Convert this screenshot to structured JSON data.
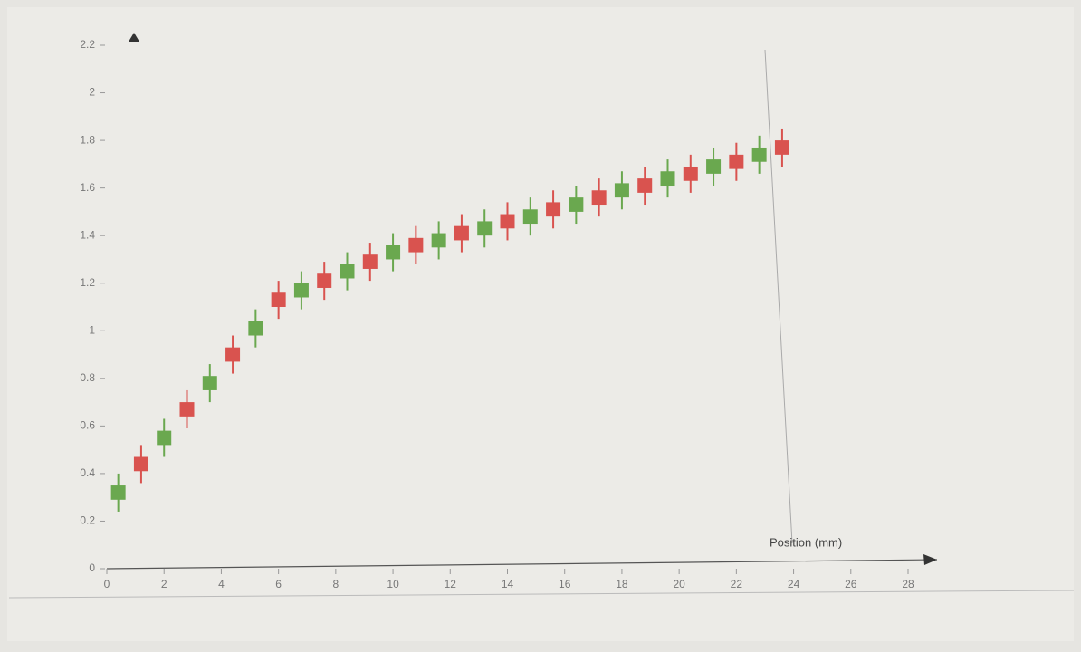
{
  "chart_data": {
    "type": "candlestick",
    "x_label": "Position (mm)",
    "x": [
      0.4,
      1.2,
      2.0,
      2.8,
      3.6,
      4.4,
      5.2,
      6.0,
      6.8,
      7.6,
      8.4,
      9.2,
      10.0,
      10.8,
      11.6,
      12.4,
      13.2,
      14.0,
      14.8,
      15.6,
      16.4,
      17.2,
      18.0,
      18.8,
      19.6,
      20.4,
      21.2,
      22.0,
      22.8,
      23.6
    ],
    "open": [
      0.29,
      0.47,
      0.52,
      0.7,
      0.75,
      0.93,
      0.98,
      1.16,
      1.14,
      1.24,
      1.22,
      1.32,
      1.3,
      1.39,
      1.35,
      1.44,
      1.4,
      1.49,
      1.45,
      1.54,
      1.5,
      1.59,
      1.56,
      1.64,
      1.61,
      1.69,
      1.66,
      1.74,
      1.71,
      1.8
    ],
    "close": [
      0.35,
      0.41,
      0.58,
      0.64,
      0.81,
      0.87,
      1.04,
      1.1,
      1.2,
      1.18,
      1.28,
      1.26,
      1.36,
      1.33,
      1.41,
      1.38,
      1.46,
      1.43,
      1.51,
      1.48,
      1.56,
      1.53,
      1.62,
      1.58,
      1.67,
      1.63,
      1.72,
      1.68,
      1.77,
      1.74
    ],
    "high": [
      0.4,
      0.52,
      0.63,
      0.75,
      0.86,
      0.98,
      1.09,
      1.21,
      1.25,
      1.29,
      1.33,
      1.37,
      1.41,
      1.44,
      1.46,
      1.49,
      1.51,
      1.54,
      1.56,
      1.59,
      1.61,
      1.64,
      1.67,
      1.69,
      1.72,
      1.74,
      1.77,
      1.79,
      1.82,
      1.85
    ],
    "low": [
      0.24,
      0.36,
      0.47,
      0.59,
      0.7,
      0.82,
      0.93,
      1.05,
      1.09,
      1.13,
      1.17,
      1.21,
      1.25,
      1.28,
      1.3,
      1.33,
      1.35,
      1.38,
      1.4,
      1.43,
      1.45,
      1.48,
      1.51,
      1.53,
      1.56,
      1.58,
      1.61,
      1.63,
      1.66,
      1.69
    ],
    "up_color": "#6aa84f",
    "down_color": "#d9534f",
    "xlim": [
      0,
      28
    ],
    "xticks": [
      0,
      2,
      4,
      6,
      8,
      10,
      12,
      14,
      16,
      18,
      20,
      22,
      24,
      26,
      28
    ],
    "ylim": [
      0,
      2.2
    ],
    "yticks": [
      0,
      0.2,
      0.4,
      0.6,
      0.8,
      1.0,
      1.2,
      1.4,
      1.6,
      1.8,
      2.0,
      2.2
    ]
  }
}
